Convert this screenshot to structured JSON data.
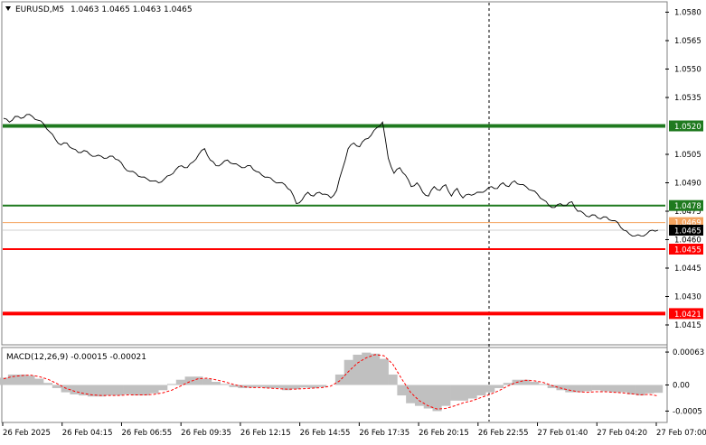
{
  "header": {
    "symbol_label": "EURUSD,M5",
    "ohlc_text": "1.0463 1.0465 1.0463 1.0465",
    "menu_icon": "triangle-down-icon"
  },
  "macd_label": "MACD(12,26,9) -0.00015 -0.00021",
  "colors": {
    "support_green": "#1f7a1f",
    "resistance_red": "#ff0000",
    "price_line": "#000000",
    "histogram": "#c0c0c0",
    "signal": "#ff0000",
    "grid": "#c8c8c8",
    "label_fg": "#ffffff"
  },
  "chart_data": [
    {
      "type": "line",
      "name": "price",
      "ylim": [
        1.0405,
        1.0585
      ],
      "y_ticks": [
        "1.0580",
        "1.0565",
        "1.0550",
        "1.0535",
        "1.0505",
        "1.0490",
        "1.0475",
        "1.0460",
        "1.0445",
        "1.0430",
        "1.0415"
      ],
      "x_ticks": [
        "26 Feb 2025",
        "26 Feb 04:15",
        "26 Feb 06:55",
        "26 Feb 09:35",
        "26 Feb 12:15",
        "26 Feb 14:55",
        "26 Feb 17:35",
        "26 Feb 20:15",
        "26 Feb 22:55",
        "27 Feb 01:40",
        "27 Feb 04:20",
        "27 Feb 07:00"
      ],
      "levels": [
        {
          "value": 1.052,
          "label": "1.0520",
          "color": "green",
          "style": "thick"
        },
        {
          "value": 1.0478,
          "label": "1.0478",
          "color": "green",
          "style": "normal"
        },
        {
          "value": 1.0455,
          "label": "1.0455",
          "color": "red",
          "style": "normal"
        },
        {
          "value": 1.0421,
          "label": "1.0421",
          "color": "red",
          "style": "thick"
        }
      ],
      "current_price": "1.0465",
      "secondary_price": "1.0469",
      "y": [
        1.0524,
        1.0522,
        1.0525,
        1.0524,
        1.0526,
        1.0525,
        1.0523,
        1.0521,
        1.0517,
        1.0513,
        1.051,
        1.0511,
        1.0508,
        1.0506,
        1.0507,
        1.0505,
        1.0504,
        1.0504,
        1.0503,
        1.0504,
        1.0502,
        1.0498,
        1.0496,
        1.0495,
        1.0493,
        1.0492,
        1.0491,
        1.049,
        1.0492,
        1.0494,
        1.0497,
        1.0499,
        1.0498,
        1.0501,
        1.0505,
        1.0508,
        1.0502,
        1.0499,
        1.05,
        1.0502,
        1.05,
        1.0499,
        1.0498,
        1.0499,
        1.0496,
        1.0494,
        1.0493,
        1.0491,
        1.049,
        1.0489,
        1.0486,
        1.0479,
        1.0481,
        1.0485,
        1.0483,
        1.0485,
        1.0484,
        1.0482,
        1.0486,
        1.0497,
        1.0508,
        1.0511,
        1.0509,
        1.0513,
        1.0515,
        1.0519,
        1.0522,
        1.0503,
        1.0495,
        1.0498,
        1.0494,
        1.0488,
        1.049,
        1.0485,
        1.0483,
        1.0488,
        1.0486,
        1.0489,
        1.0483,
        1.0487,
        1.0482,
        1.0484,
        1.0484,
        1.0485,
        1.0486,
        1.0488,
        1.0487,
        1.049,
        1.0488,
        1.0491,
        1.0489,
        1.0488,
        1.0486,
        1.0484,
        1.0481,
        1.0478,
        1.0477,
        1.0479,
        1.0478,
        1.048,
        1.0475,
        1.0474,
        1.0472,
        1.0473,
        1.0471,
        1.0472,
        1.047,
        1.0469,
        1.0465,
        1.0463,
        1.0462,
        1.0462,
        1.0463,
        1.0465,
        1.0465
      ]
    },
    {
      "type": "bar",
      "name": "MACD(12,26,9)",
      "ylim": [
        -0.0007,
        0.0007
      ],
      "y_ticks": [
        "0.00063",
        "0.00",
        "-0.0005"
      ],
      "histogram": [
        0.00014,
        0.0002,
        0.0002,
        0.00018,
        0.00012,
        4e-05,
        -6e-05,
        -0.00014,
        -0.00018,
        -0.0002,
        -0.00022,
        -0.00022,
        -0.0002,
        -0.0002,
        -0.00018,
        -0.0002,
        -0.0002,
        -0.00016,
        -0.0001,
        2e-05,
        0.0001,
        0.00016,
        0.00016,
        0.00012,
        6e-05,
        2e-05,
        -4e-05,
        -6e-05,
        -5e-05,
        -4e-05,
        -6e-05,
        -6e-05,
        -0.0001,
        -8e-05,
        -5e-05,
        -6e-05,
        -4e-05,
        0.0,
        0.0002,
        0.00048,
        0.00058,
        0.00062,
        0.0006,
        0.0005,
        0.0002,
        -0.0002,
        -0.00035,
        -0.0004,
        -0.00045,
        -0.0005,
        -0.0004,
        -0.0003,
        -0.0003,
        -0.00026,
        -0.0002,
        -0.00014,
        -6e-05,
        4e-05,
        0.0001,
        0.0001,
        6e-05,
        2e-05,
        -6e-05,
        -0.0001,
        -0.00014,
        -0.00014,
        -0.00012,
        -0.0001,
        -0.00012,
        -0.00014,
        -0.00014,
        -0.00018,
        -0.0002,
        -0.00016,
        -0.00015
      ],
      "signal": [
        0.00012,
        0.00016,
        0.00018,
        0.00019,
        0.00016,
        0.00011,
        3e-05,
        -6e-05,
        -0.00012,
        -0.00016,
        -0.00019,
        -0.0002,
        -0.0002,
        -0.0002,
        -0.00019,
        -0.00019,
        -0.00019,
        -0.00018,
        -0.00015,
        -0.0001,
        -2e-05,
        6e-05,
        0.00012,
        0.00013,
        0.0001,
        6e-05,
        1e-05,
        -3e-05,
        -5e-05,
        -5e-05,
        -6e-05,
        -7e-05,
        -8e-05,
        -8e-05,
        -7e-05,
        -6e-05,
        -5e-05,
        -2e-05,
        8e-05,
        0.00026,
        0.00042,
        0.00052,
        0.00058,
        0.00056,
        0.0004,
        0.00012,
        -0.00014,
        -0.0003,
        -0.0004,
        -0.00046,
        -0.00045,
        -0.0004,
        -0.00034,
        -0.0003,
        -0.00024,
        -0.00018,
        -0.00011,
        -2e-05,
        5e-05,
        9e-05,
        8e-05,
        5e-05,
        -1e-05,
        -6e-05,
        -0.0001,
        -0.00013,
        -0.00014,
        -0.00013,
        -0.00013,
        -0.00014,
        -0.00015,
        -0.00017,
        -0.00019,
        -0.00018,
        -0.00021
      ]
    }
  ]
}
